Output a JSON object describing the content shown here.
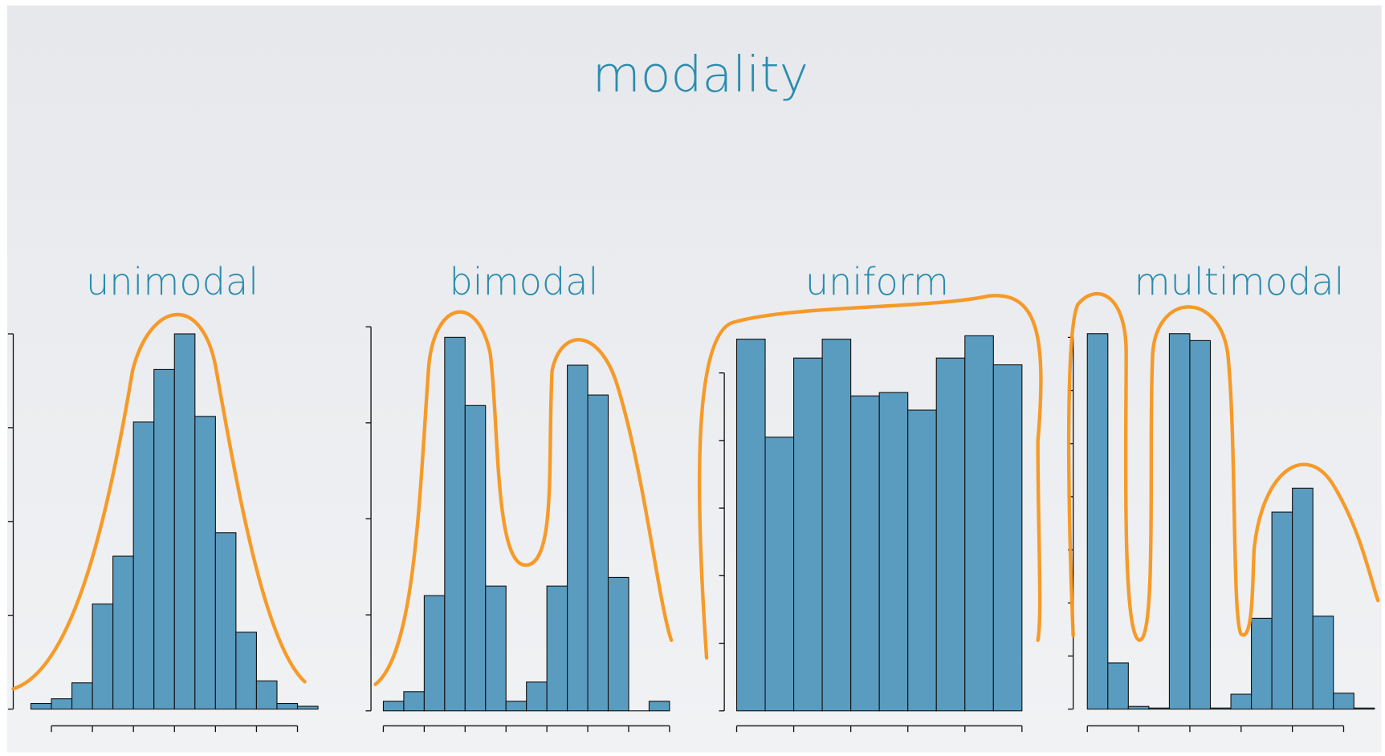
{
  "title": "modality",
  "chart_data": [
    {
      "type": "histogram",
      "title": "unimodal",
      "color": "#5a9bc0",
      "bins": [
        0,
        1,
        2,
        3,
        4,
        5,
        6,
        7,
        8,
        9,
        10,
        11,
        12,
        13,
        14
      ],
      "values": [
        6,
        11,
        28,
        112,
        163,
        306,
        362,
        400,
        312,
        188,
        82,
        30,
        6,
        3
      ],
      "xlim": [
        0,
        14
      ],
      "xticks": [
        1,
        3,
        5,
        7,
        9,
        11,
        13
      ],
      "ylim": [
        0,
        400
      ],
      "yticks": [
        0,
        100,
        200,
        300,
        400
      ]
    },
    {
      "type": "histogram",
      "title": "bimodal",
      "color": "#5a9bc0",
      "bins": [
        0,
        1,
        2,
        3,
        4,
        5,
        6,
        7,
        8,
        9,
        10,
        11,
        12,
        13,
        14
      ],
      "values": [
        10,
        20,
        120,
        389,
        318,
        130,
        10,
        30,
        130,
        360,
        329,
        139,
        0,
        10
      ],
      "xlim": [
        0,
        14
      ],
      "xticks": [
        0,
        2,
        4,
        6,
        8,
        10,
        12,
        14
      ],
      "ylim": [
        0,
        400
      ],
      "yticks": [
        0,
        100,
        200,
        300,
        400
      ]
    },
    {
      "type": "histogram",
      "title": "uniform",
      "color": "#5a9bc0",
      "bins": [
        0,
        1,
        2,
        3,
        4,
        5,
        6,
        7,
        8,
        9,
        10
      ],
      "values": [
        550,
        405,
        522,
        550,
        466,
        471,
        445,
        522,
        555,
        512
      ],
      "xlim": [
        0,
        10
      ],
      "xticks": [
        0,
        2,
        4,
        6,
        8,
        10
      ],
      "ylim": [
        0,
        550
      ],
      "yticks": [
        0,
        100,
        200,
        300,
        400,
        500
      ]
    },
    {
      "type": "histogram",
      "title": "multimodal",
      "color": "#5a9bc0",
      "bins": [
        0,
        1,
        2,
        3,
        4,
        5,
        6,
        7,
        8,
        9,
        10,
        11,
        12,
        13,
        14
      ],
      "values": [
        707,
        87,
        5,
        2,
        707,
        694,
        2,
        28,
        171,
        371,
        416,
        175,
        30,
        2
      ],
      "xlim": [
        0,
        14
      ],
      "xticks": [
        0,
        2.5,
        5,
        7.5,
        10,
        12.5
      ],
      "ylim": [
        0,
        700
      ],
      "yticks": [
        0,
        100,
        200,
        300,
        400,
        500,
        600,
        700
      ]
    }
  ]
}
